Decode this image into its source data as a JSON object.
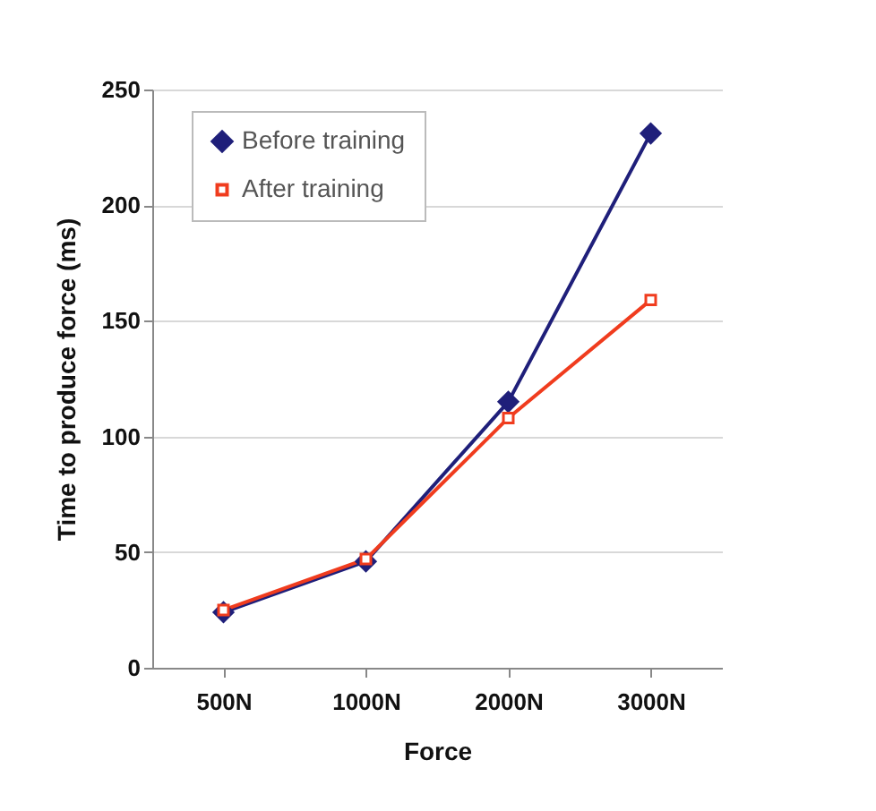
{
  "chart_data": {
    "type": "line",
    "xlabel": "Force",
    "ylabel": "Time to produce force (ms)",
    "categories": [
      "500N",
      "1000N",
      "2000N",
      "3000N"
    ],
    "series": [
      {
        "name": "Before training",
        "color": "#1f1f7a",
        "marker": "diamond",
        "values": [
          24,
          46,
          115,
          231
        ]
      },
      {
        "name": "After training",
        "color": "#f03c1e",
        "marker": "square",
        "values": [
          25,
          47,
          108,
          159
        ]
      }
    ],
    "ylim": [
      0,
      250
    ],
    "yticks": [
      0,
      50,
      100,
      150,
      200,
      250
    ],
    "grid": "y",
    "legend": "top left"
  }
}
